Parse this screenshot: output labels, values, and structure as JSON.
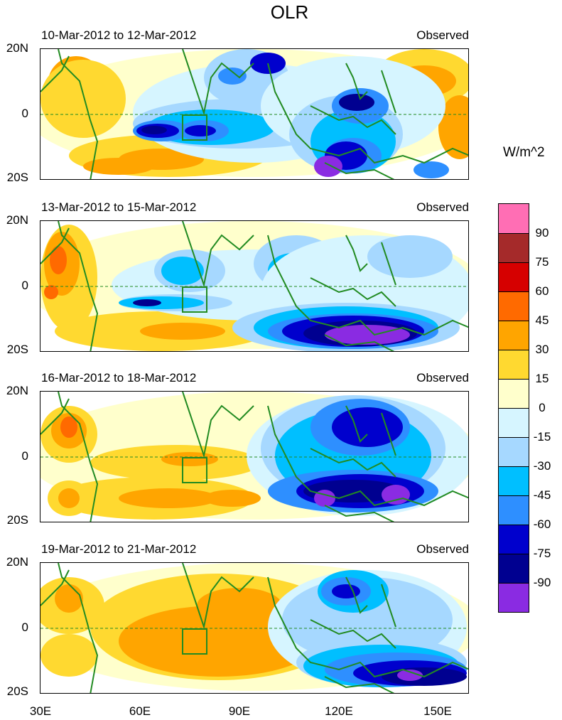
{
  "title": "OLR",
  "units": "W/m^2",
  "panels": [
    {
      "date_range": "10-Mar-2012 to 12-Mar-2012",
      "label": "Observed"
    },
    {
      "date_range": "13-Mar-2012 to 15-Mar-2012",
      "label": "Observed"
    },
    {
      "date_range": "16-Mar-2012 to 18-Mar-2012",
      "label": "Observed"
    },
    {
      "date_range": "19-Mar-2012 to 21-Mar-2012",
      "label": "Observed"
    }
  ],
  "lat_labels": [
    "20N",
    "0",
    "20S"
  ],
  "lon_labels": [
    "30E",
    "60E",
    "90E",
    "120E",
    "150E"
  ],
  "colorbar": {
    "levels": [
      "90",
      "75",
      "60",
      "45",
      "30",
      "15",
      "0",
      "-15",
      "-30",
      "-45",
      "-60",
      "-75",
      "-90"
    ],
    "colors": [
      "#ff6eb4",
      "#a52a2a",
      "#d60000",
      "#ff6a00",
      "#ffa500",
      "#ffd930",
      "#ffffcc",
      "#d6f5ff",
      "#a6d8ff",
      "#00bfff",
      "#2e8fff",
      "#0000cd",
      "#000090",
      "#8a2be2"
    ]
  }
}
